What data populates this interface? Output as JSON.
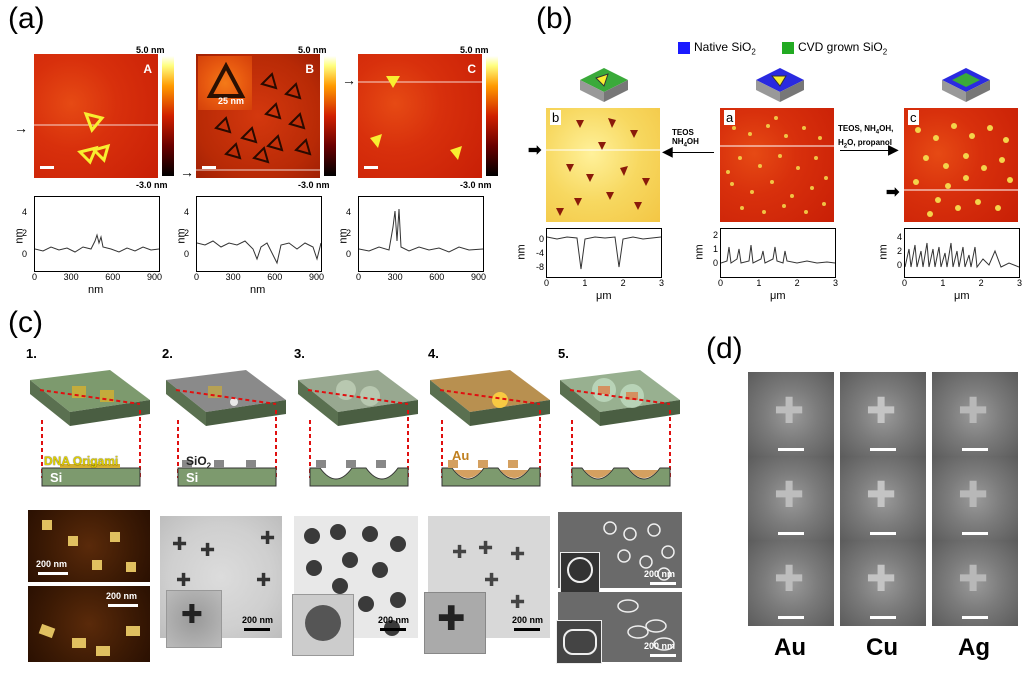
{
  "panels": {
    "a": {
      "label": "(a)",
      "images": [
        {
          "letter": "A",
          "cbar_top": "5.0 nm",
          "cbar_bottom": "-3.0 nm"
        },
        {
          "letter": "B",
          "cbar_top": "5.0 nm",
          "cbar_bottom": "-3.0 nm",
          "inset": "25 nm"
        },
        {
          "letter": "C",
          "cbar_top": "5.0 nm",
          "cbar_bottom": "-3.0 nm"
        }
      ],
      "plot_ylabel": "nm",
      "plot_xlabel": "nm",
      "xticks": [
        "0",
        "300",
        "600",
        "900"
      ],
      "yticks_a": [
        "4",
        "2",
        "0"
      ],
      "yticks_b": [
        "4",
        "2",
        "0"
      ],
      "yticks_c": [
        "4",
        "2",
        "0"
      ]
    },
    "b": {
      "label": "(b)",
      "legend_native": "Native SiO",
      "legend_cvd": "CVD grown SiO",
      "sub2": "2",
      "left_letter": "b",
      "mid_letter": "a",
      "right_letter": "c",
      "left_arrow_text_1": "TEOS",
      "left_arrow_text_2": "NH",
      "left_arrow_text_3": "OH",
      "right_arrow_text_1": "TEOS, NH",
      "right_arrow_text_2": "OH,",
      "right_arrow_text_3": "H",
      "right_arrow_text_4": "O, propanol",
      "sub4": "4",
      "ylabel": "nm",
      "xlabel": "μm",
      "xticks": [
        "0",
        "1",
        "2",
        "3"
      ],
      "yticks_left": [
        "0",
        "-4",
        "-8"
      ],
      "yticks_mid": [
        "2",
        "1",
        "0"
      ],
      "yticks_right": [
        "4",
        "2",
        "0"
      ]
    },
    "c": {
      "label": "(c)",
      "steps": [
        "1.",
        "2.",
        "3.",
        "4.",
        "5."
      ],
      "dna_label": "DNA Origami",
      "si_label": "Si",
      "sio2_label": "SiO",
      "sio2_sub": "2",
      "au_label": "Au",
      "scale_200": "200 nm"
    },
    "d": {
      "label": "(d)",
      "metals": [
        "Au",
        "Cu",
        "Ag"
      ]
    }
  },
  "colors": {
    "afm_red": "#d8300c",
    "native_sio2": "#1a1aff",
    "cvd_sio2": "#22aa22",
    "green_slab": "#6f8f5f",
    "dashed_red": "#e01010"
  }
}
